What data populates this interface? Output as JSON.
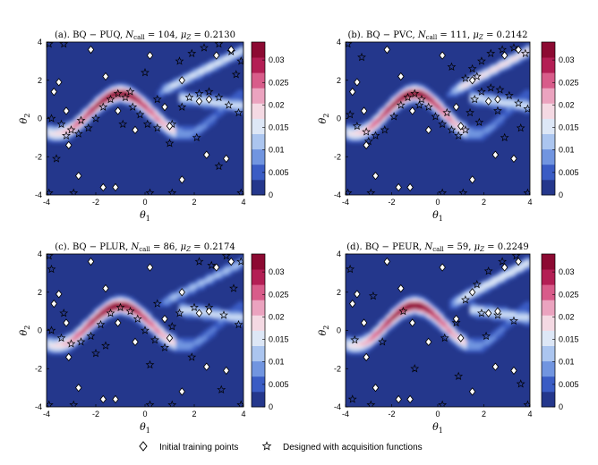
{
  "chart_data": [
    {
      "type": "heatmap",
      "title": "(a). BQ − PUQ, N_call = 104, μ_Z = 0.2130",
      "title_parts": {
        "prefix": "(a). BQ − PUQ, ",
        "n_label": "N",
        "n_sub": "call",
        "n_value": " = 104,  ",
        "mu_label": "μ",
        "mu_sub": "Z",
        "mu_value": " = 0.2130"
      },
      "xlabel": "θ1",
      "ylabel": "θ2",
      "xlim": [
        -4,
        4
      ],
      "ylim": [
        -4,
        4
      ],
      "xticks": [
        "-4",
        "-2",
        "0",
        "2",
        "4"
      ],
      "yticks": [
        "-4",
        "-2",
        "0",
        "2",
        "4"
      ],
      "branch_strength": 0.8,
      "initial_points": [
        [
          -3.5,
          1.9
        ],
        [
          -3.7,
          1.4
        ],
        [
          -3.2,
          0.4
        ],
        [
          -3.1,
          -1.4
        ],
        [
          -2.7,
          -3.0
        ],
        [
          -2.2,
          3.6
        ],
        [
          -1.6,
          2.2
        ],
        [
          -1.1,
          0.4
        ],
        [
          -1.2,
          -3.6
        ],
        [
          0.2,
          3.3
        ],
        [
          -0.4,
          -0.6
        ],
        [
          0.8,
          0.6
        ],
        [
          1.0,
          -0.4
        ],
        [
          1.5,
          2.0
        ],
        [
          2.2,
          0.9
        ],
        [
          2.6,
          1.0
        ],
        [
          2.9,
          3.3
        ],
        [
          3.5,
          3.6
        ],
        [
          2.5,
          -1.9
        ],
        [
          3.3,
          -2.1
        ],
        [
          -1.7,
          -3.6
        ],
        [
          1.5,
          -3.2
        ]
      ],
      "designed_points": [
        [
          -3.9,
          3.9
        ],
        [
          -3.9,
          -3.9
        ],
        [
          -2.9,
          -3.9
        ],
        [
          0.2,
          -3.9
        ],
        [
          1.1,
          -3.9
        ],
        [
          3.9,
          -3.9
        ],
        [
          -3.3,
          3.9
        ],
        [
          -3.8,
          0.0
        ],
        [
          -3.4,
          -0.3
        ],
        [
          -3.0,
          -0.6
        ],
        [
          -2.7,
          -0.8
        ],
        [
          -2.3,
          -0.5
        ],
        [
          -2.0,
          0.0
        ],
        [
          -1.7,
          0.6
        ],
        [
          -1.4,
          1.0
        ],
        [
          -1.1,
          1.3
        ],
        [
          -0.8,
          1.1
        ],
        [
          -0.5,
          0.6
        ],
        [
          -0.2,
          0.2
        ],
        [
          0.1,
          -0.3
        ],
        [
          0.5,
          -0.5
        ],
        [
          -0.6,
          1.4
        ],
        [
          -2.6,
          -0.1
        ],
        [
          -3.2,
          -0.9
        ],
        [
          1.1,
          -0.3
        ],
        [
          1.5,
          0.6
        ],
        [
          1.8,
          1.1
        ],
        [
          2.2,
          1.3
        ],
        [
          2.6,
          1.4
        ],
        [
          3.0,
          1.1
        ],
        [
          3.4,
          0.7
        ],
        [
          3.8,
          0.3
        ],
        [
          1.4,
          3.0
        ],
        [
          1.9,
          3.4
        ],
        [
          2.4,
          3.7
        ],
        [
          3.0,
          3.9
        ],
        [
          3.5,
          3.5
        ],
        [
          3.9,
          3.0
        ],
        [
          -0.9,
          -0.3
        ],
        [
          0.5,
          1.0
        ],
        [
          3.0,
          -2.5
        ],
        [
          -3.6,
          -2.1
        ],
        [
          2.1,
          -1.0
        ],
        [
          1.0,
          -1.3
        ],
        [
          3.7,
          2.3
        ],
        [
          0.0,
          2.4
        ]
      ]
    },
    {
      "type": "heatmap",
      "title": "(b). BQ − PVC, N_call = 111, μ_Z = 0.2142",
      "title_parts": {
        "prefix": "(b). BQ − PVC, ",
        "n_label": "N",
        "n_sub": "call",
        "n_value": " = 111,  ",
        "mu_label": "μ",
        "mu_sub": "Z",
        "mu_value": " = 0.2142"
      },
      "xlabel": "θ1",
      "ylabel": "θ2",
      "xlim": [
        -4,
        4
      ],
      "ylim": [
        -4,
        4
      ],
      "xticks": [
        "-4",
        "-2",
        "0",
        "2",
        "4"
      ],
      "yticks": [
        "-4",
        "-2",
        "0",
        "2",
        "4"
      ],
      "branch_strength": 1.0,
      "initial_points": [
        [
          -3.5,
          1.9
        ],
        [
          -3.7,
          1.4
        ],
        [
          -3.2,
          0.4
        ],
        [
          -3.1,
          -1.4
        ],
        [
          -2.7,
          -3.0
        ],
        [
          -2.2,
          3.6
        ],
        [
          -1.6,
          2.2
        ],
        [
          -1.1,
          0.4
        ],
        [
          -1.2,
          -3.6
        ],
        [
          0.2,
          3.3
        ],
        [
          -0.4,
          -0.6
        ],
        [
          0.8,
          0.6
        ],
        [
          1.0,
          -0.4
        ],
        [
          1.5,
          2.0
        ],
        [
          2.2,
          0.9
        ],
        [
          2.6,
          1.0
        ],
        [
          2.9,
          3.3
        ],
        [
          3.5,
          3.6
        ],
        [
          2.5,
          -1.9
        ],
        [
          3.3,
          -2.1
        ],
        [
          -1.7,
          -3.6
        ],
        [
          1.5,
          -3.2
        ]
      ],
      "designed_points": [
        [
          -3.9,
          3.9
        ],
        [
          -3.9,
          -3.9
        ],
        [
          -2.9,
          -3.9
        ],
        [
          0.2,
          -3.9
        ],
        [
          1.1,
          -3.9
        ],
        [
          3.9,
          -3.9
        ],
        [
          -3.3,
          3.2
        ],
        [
          -3.8,
          0.2
        ],
        [
          -3.5,
          -0.4
        ],
        [
          -3.1,
          -0.7
        ],
        [
          -2.7,
          -0.9
        ],
        [
          -2.3,
          -0.6
        ],
        [
          -1.9,
          0.1
        ],
        [
          -1.6,
          0.7
        ],
        [
          -1.3,
          1.1
        ],
        [
          -1.0,
          1.3
        ],
        [
          -0.7,
          1.0
        ],
        [
          -0.4,
          0.6
        ],
        [
          -0.1,
          0.1
        ],
        [
          0.2,
          -0.3
        ],
        [
          0.6,
          -0.6
        ],
        [
          0.9,
          -0.9
        ],
        [
          1.2,
          -0.6
        ],
        [
          1.4,
          0.3
        ],
        [
          1.6,
          1.0
        ],
        [
          1.9,
          1.4
        ],
        [
          2.3,
          1.6
        ],
        [
          2.7,
          1.5
        ],
        [
          3.1,
          1.2
        ],
        [
          3.5,
          0.8
        ],
        [
          3.9,
          0.5
        ],
        [
          1.2,
          2.1
        ],
        [
          1.5,
          2.6
        ],
        [
          1.9,
          3.0
        ],
        [
          2.3,
          3.4
        ],
        [
          2.8,
          3.6
        ],
        [
          3.3,
          3.7
        ],
        [
          3.8,
          3.4
        ],
        [
          1.7,
          2.2
        ],
        [
          -0.8,
          0.7
        ],
        [
          0.4,
          0.3
        ],
        [
          2.9,
          -1.0
        ],
        [
          -3.0,
          -1.2
        ],
        [
          1.8,
          -0.2
        ],
        [
          0.6,
          2.7
        ],
        [
          2.6,
          0.4
        ],
        [
          3.6,
          -0.5
        ]
      ]
    },
    {
      "type": "heatmap",
      "title": "(c). BQ − PLUR, N_call = 86, μ_Z = 0.2174",
      "title_parts": {
        "prefix": "(c). BQ − PLUR, ",
        "n_label": "N",
        "n_sub": "call",
        "n_value": " = 86,  ",
        "mu_label": "μ",
        "mu_sub": "Z",
        "mu_value": " = 0.2174"
      },
      "xlabel": "θ1",
      "ylabel": "θ2",
      "xlim": [
        -4,
        4
      ],
      "ylim": [
        -4,
        4
      ],
      "xticks": [
        "-4",
        "-2",
        "0",
        "2",
        "4"
      ],
      "yticks": [
        "-4",
        "-2",
        "0",
        "2",
        "4"
      ],
      "branch_strength": 0.6,
      "initial_points": [
        [
          -3.5,
          1.9
        ],
        [
          -3.7,
          1.4
        ],
        [
          -3.2,
          0.4
        ],
        [
          -3.1,
          -1.4
        ],
        [
          -2.7,
          -3.0
        ],
        [
          -2.2,
          3.6
        ],
        [
          -1.6,
          2.2
        ],
        [
          -1.1,
          0.4
        ],
        [
          -1.2,
          -3.6
        ],
        [
          0.2,
          3.3
        ],
        [
          -0.4,
          -0.6
        ],
        [
          0.8,
          0.6
        ],
        [
          1.0,
          -0.4
        ],
        [
          1.5,
          2.0
        ],
        [
          2.2,
          0.9
        ],
        [
          2.6,
          1.0
        ],
        [
          2.9,
          3.3
        ],
        [
          3.5,
          3.6
        ],
        [
          2.5,
          -1.9
        ],
        [
          3.3,
          -2.1
        ],
        [
          -1.7,
          -3.6
        ],
        [
          1.5,
          -3.2
        ]
      ],
      "designed_points": [
        [
          -3.9,
          3.9
        ],
        [
          -3.9,
          -3.9
        ],
        [
          -2.9,
          -3.9
        ],
        [
          0.2,
          -3.9
        ],
        [
          1.1,
          -3.9
        ],
        [
          3.9,
          -3.9
        ],
        [
          -3.8,
          3.2
        ],
        [
          -3.8,
          0.0
        ],
        [
          -3.4,
          -0.4
        ],
        [
          -3.0,
          -0.7
        ],
        [
          -2.6,
          -0.6
        ],
        [
          -2.2,
          -0.3
        ],
        [
          -1.8,
          0.3
        ],
        [
          -1.4,
          0.9
        ],
        [
          -1.0,
          1.2
        ],
        [
          -0.6,
          1.0
        ],
        [
          -0.3,
          0.6
        ],
        [
          0.0,
          0.0
        ],
        [
          0.4,
          -0.5
        ],
        [
          0.8,
          -0.9
        ],
        [
          1.1,
          0.2
        ],
        [
          1.4,
          0.9
        ],
        [
          2.0,
          1.2
        ],
        [
          2.6,
          1.2
        ],
        [
          3.2,
          0.8
        ],
        [
          3.8,
          0.3
        ],
        [
          2.2,
          3.6
        ],
        [
          2.7,
          3.4
        ],
        [
          3.3,
          3.9
        ],
        [
          3.9,
          3.6
        ],
        [
          -2.0,
          -1.2
        ],
        [
          0.5,
          1.4
        ],
        [
          3.1,
          -3.1
        ],
        [
          -3.3,
          0.9
        ],
        [
          1.9,
          -1.4
        ],
        [
          0.2,
          -1.8
        ],
        [
          3.6,
          2.2
        ],
        [
          -1.6,
          -0.8
        ]
      ]
    },
    {
      "type": "heatmap",
      "title": "(d). BQ − PEUR, N_call = 59, μ_Z = 0.2249",
      "title_parts": {
        "prefix": "(d). BQ − PEUR, ",
        "n_label": "N",
        "n_sub": "call",
        "n_value": " = 59,  ",
        "mu_label": "μ",
        "mu_sub": "Z",
        "mu_value": " = 0.2249"
      },
      "xlabel": "θ1",
      "ylabel": "θ2",
      "xlim": [
        -4,
        4
      ],
      "ylim": [
        -4,
        4
      ],
      "xticks": [
        "-4",
        "-2",
        "0",
        "2",
        "4"
      ],
      "yticks": [
        "-4",
        "-2",
        "0",
        "2",
        "4"
      ],
      "branch_strength": 0.9,
      "initial_points": [
        [
          -3.5,
          1.9
        ],
        [
          -3.7,
          1.4
        ],
        [
          -3.2,
          0.4
        ],
        [
          -3.1,
          -1.4
        ],
        [
          -2.7,
          -3.0
        ],
        [
          -2.2,
          3.6
        ],
        [
          -1.6,
          2.2
        ],
        [
          -1.1,
          0.4
        ],
        [
          -1.2,
          -3.6
        ],
        [
          0.2,
          3.3
        ],
        [
          -0.4,
          -0.6
        ],
        [
          0.8,
          0.6
        ],
        [
          1.0,
          -0.4
        ],
        [
          1.5,
          2.0
        ],
        [
          2.2,
          0.9
        ],
        [
          2.6,
          1.0
        ],
        [
          2.9,
          3.3
        ],
        [
          3.5,
          3.6
        ],
        [
          2.5,
          -1.9
        ],
        [
          3.3,
          -2.1
        ],
        [
          -1.7,
          -3.6
        ],
        [
          1.5,
          -3.2
        ]
      ],
      "designed_points": [
        [
          -3.7,
          -3.6
        ],
        [
          -2.9,
          -3.9
        ],
        [
          0.2,
          -3.9
        ],
        [
          3.9,
          -3.9
        ],
        [
          -3.8,
          3.2
        ],
        [
          -3.6,
          -0.5
        ],
        [
          -2.4,
          -0.6
        ],
        [
          -1.5,
          1.0
        ],
        [
          0.3,
          -0.4
        ],
        [
          0.8,
          0.4
        ],
        [
          1.2,
          1.6
        ],
        [
          1.7,
          2.4
        ],
        [
          2.2,
          3.1
        ],
        [
          2.8,
          3.6
        ],
        [
          3.4,
          3.9
        ],
        [
          1.9,
          0.9
        ],
        [
          2.6,
          0.8
        ],
        [
          3.3,
          0.5
        ],
        [
          -2.8,
          1.8
        ],
        [
          0.9,
          -2.4
        ],
        [
          3.6,
          -2.8
        ],
        [
          -1.0,
          -2.0
        ],
        [
          2.1,
          -0.3
        ]
      ]
    }
  ],
  "colorbar": {
    "ticks": [
      "0",
      "0.005",
      "0.01",
      "0.015",
      "0.02",
      "0.025",
      "0.03"
    ],
    "colors": [
      "#24378c",
      "#3a5cc4",
      "#7195e0",
      "#abc5ef",
      "#dde7f6",
      "#f4d9e3",
      "#eba3bf",
      "#d85c8a",
      "#b31e54",
      "#8c0a32"
    ]
  },
  "legend": {
    "initial_label": "Initial training points",
    "designed_label": "Designed with acquisition functions"
  }
}
